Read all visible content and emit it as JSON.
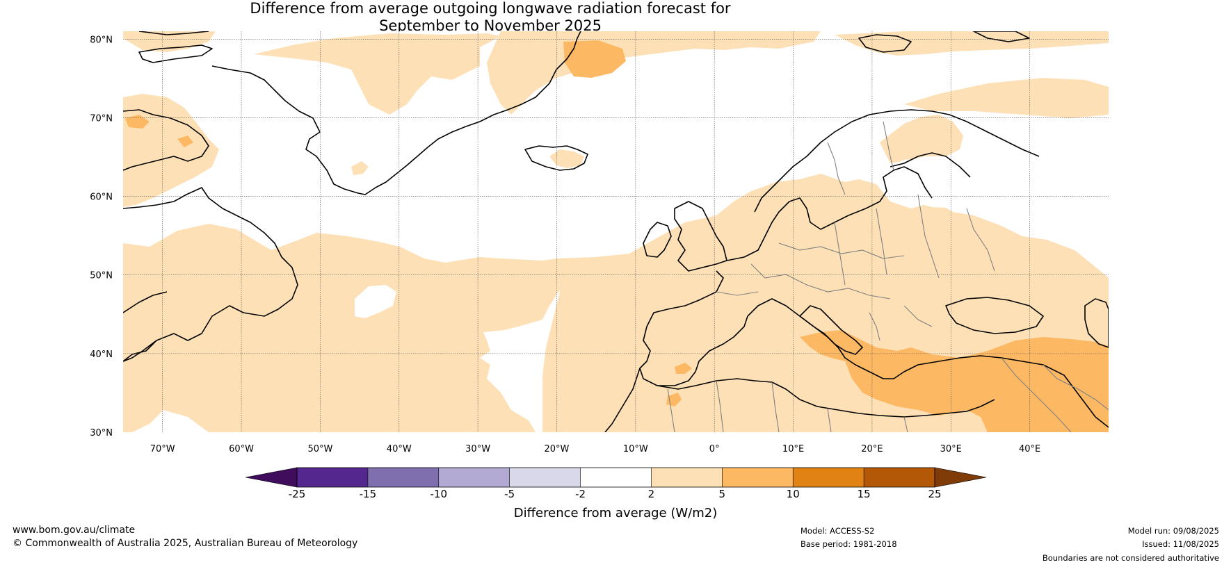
{
  "title": {
    "line1": "Difference from average outgoing longwave radiation forecast for",
    "line2": "September to November 2025"
  },
  "map": {
    "lat_labels": [
      "80°N",
      "70°N",
      "60°N",
      "50°N",
      "40°N",
      "30°N"
    ],
    "lon_labels": [
      "70°W",
      "60°W",
      "50°W",
      "40°W",
      "30°W",
      "20°W",
      "10°W",
      "0°",
      "10°E",
      "20°E",
      "30°E",
      "40°E"
    ],
    "lat_values": [
      80,
      70,
      60,
      50,
      40,
      30
    ],
    "lon_values": [
      -70,
      -60,
      -50,
      -40,
      -30,
      -20,
      -10,
      0,
      10,
      20,
      30,
      40
    ],
    "extent": {
      "lon_min": -75,
      "lon_max": 50,
      "lat_min": 30,
      "lat_max": 81
    }
  },
  "colorbar": {
    "title": "Difference from average (W/m2)",
    "labels": [
      "-25",
      "-15",
      "-10",
      "-5",
      "-2",
      "2",
      "5",
      "10",
      "15",
      "25"
    ],
    "colors": [
      "#3f0d5c",
      "#54278f",
      "#7f6fae",
      "#b2aad3",
      "#d8d8ea",
      "#ffffff",
      "#fde0b5",
      "#fdb863",
      "#e08214",
      "#b35806",
      "#7f3b08"
    ]
  },
  "colors": {
    "land_coast": "#000000",
    "borders": "#808080",
    "grid": "#555555"
  },
  "footer": {
    "site": "www.bom.gov.au/climate",
    "copyright": "© Commonwealth of Australia 2025, Australian Bureau of Meteorology",
    "model": "Model: ACCESS-S2",
    "base_period": "Base period: 1981-2018",
    "model_run": "Model run: 09/08/2025",
    "issued": "Issued: 11/08/2025",
    "disclaimer": "Boundaries are not considered authoritative"
  }
}
